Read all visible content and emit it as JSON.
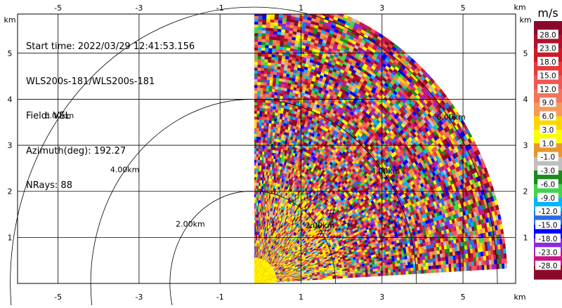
{
  "info": {
    "start_time": "Start time: 2022/03/29 12:41:53.156",
    "instrument": "WLS200s-181/WLS200s-181",
    "field": "Field: VEL",
    "azimuth": "Azimuth(deg): 192.27",
    "nrays": "NRays: 88"
  },
  "chart_data": {
    "type": "heatmap",
    "title": "",
    "x_unit": "km",
    "y_unit": "km",
    "xlim": [
      -6.0,
      6.3
    ],
    "ylim": [
      0,
      5.85
    ],
    "x_ticks": [
      -5,
      -3,
      -1,
      1,
      3,
      5
    ],
    "y_ticks": [
      1,
      2,
      3,
      4,
      5
    ],
    "grid": true,
    "range_rings": [
      {
        "range_km": 2,
        "label": "2.00km"
      },
      {
        "range_km": 4,
        "label": "4.00km"
      },
      {
        "range_km": 6,
        "label": "6.00km"
      }
    ],
    "sector": {
      "x_start_km": -0.15,
      "max_range_km": 6.25,
      "azimuth_start_deg": 0,
      "azimuth_end_deg": 87,
      "n_rays": 88,
      "range_gates": 100
    },
    "colorbar": {
      "unit": "m/s",
      "tick_labels": [
        "28.0",
        "23.0",
        "18.0",
        "15.0",
        "12.0",
        "9.0",
        "6.0",
        "3.0",
        "1.0",
        "-1.0",
        "-3.0",
        "-6.0",
        "-9.0",
        "-12.0",
        "-15.0",
        "-18.0",
        "-23.0",
        "-28.0"
      ],
      "colors": [
        "#8b0a2b",
        "#b01030",
        "#cc1a28",
        "#e83a3a",
        "#f25555",
        "#f5735a",
        "#f59a5a",
        "#ffd700",
        "#ffff00",
        "#e8962e",
        "#bfbfbf",
        "#1f8a1f",
        "#42d44e",
        "#00b4ff",
        "#2a6de0",
        "#0000ff",
        "#8a2be2",
        "#c71585",
        "#8b0a2b"
      ]
    }
  }
}
